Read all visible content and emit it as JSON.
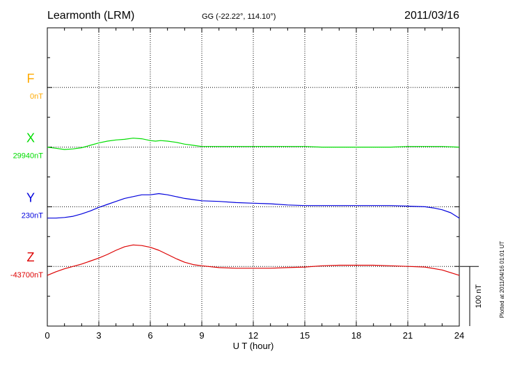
{
  "header": {
    "station": "Learmonth (LRM)",
    "coords": "GG (-22.22°, 114.10°)",
    "date": "2011/03/16"
  },
  "footer": {
    "plotted": "Plotted at 2011/04/16 01:01 UT"
  },
  "scale": {
    "label": "100 nT",
    "nT": 100
  },
  "chart_data": {
    "type": "line",
    "title": "Learmonth (LRM)",
    "subtitle": "GG (-22.22°, 114.10°)",
    "xlabel": "U T (hour)",
    "xlim": [
      0,
      24
    ],
    "xticks": [
      0,
      3,
      6,
      9,
      12,
      15,
      18,
      21,
      24
    ],
    "grid": true,
    "y_range_nT": 500,
    "channels": [
      {
        "name": "F",
        "baseline_label": "0nT",
        "color": "#ffaa00",
        "baseline_slot": 1,
        "values": []
      },
      {
        "name": "X",
        "baseline_label": "29940nT",
        "color": "#00dd00",
        "baseline_slot": 2,
        "x": [
          0,
          0.5,
          1,
          1.5,
          2,
          2.5,
          3,
          3.5,
          4,
          4.5,
          5,
          5.5,
          6,
          6.3,
          6.6,
          7,
          7.5,
          8,
          8.5,
          9,
          10,
          11,
          12,
          13,
          14,
          15,
          16,
          17,
          18,
          19,
          20,
          21,
          22,
          23,
          24
        ],
        "values": [
          0,
          -2,
          -4,
          -3,
          -1,
          3,
          7,
          10,
          12,
          13,
          15,
          14,
          11,
          10,
          11,
          10,
          8,
          5,
          3,
          1,
          1,
          1,
          1,
          1,
          1,
          1,
          0,
          0,
          0,
          0,
          0,
          1,
          1,
          1,
          0
        ]
      },
      {
        "name": "Y",
        "baseline_label": "230nT",
        "color": "#0000dd",
        "baseline_slot": 3,
        "x": [
          0,
          0.5,
          1,
          1.5,
          2,
          2.5,
          3,
          3.5,
          4,
          4.5,
          5,
          5.5,
          6,
          6.5,
          7,
          7.5,
          8,
          8.5,
          9,
          10,
          11,
          12,
          13,
          14,
          15,
          16,
          17,
          18,
          19,
          20,
          21,
          22,
          22.5,
          23,
          23.5,
          24
        ],
        "values": [
          -19,
          -19,
          -18,
          -16,
          -12,
          -7,
          -1,
          4,
          9,
          14,
          17,
          20,
          20,
          22,
          20,
          17,
          14,
          12,
          10,
          9,
          7,
          6,
          5,
          3,
          2,
          2,
          2,
          2,
          2,
          2,
          1,
          0,
          -2,
          -5,
          -10,
          -19
        ]
      },
      {
        "name": "Z",
        "baseline_label": "-43700nT",
        "color": "#dd0000",
        "baseline_slot": 4,
        "x": [
          0,
          0.5,
          1,
          1.5,
          2,
          2.5,
          3,
          3.5,
          4,
          4.5,
          5,
          5.5,
          6,
          6.5,
          7,
          7.5,
          8,
          8.5,
          9,
          10,
          11,
          12,
          13,
          14,
          15,
          16,
          17,
          18,
          19,
          20,
          21,
          22,
          23,
          24
        ],
        "values": [
          -15,
          -9,
          -4,
          0,
          4,
          9,
          14,
          20,
          27,
          33,
          36,
          35,
          32,
          27,
          20,
          13,
          7,
          3,
          1,
          -2,
          -3,
          -3,
          -3,
          -2,
          -1,
          1,
          2,
          2,
          2,
          1,
          0,
          -1,
          -6,
          -15
        ]
      }
    ]
  }
}
